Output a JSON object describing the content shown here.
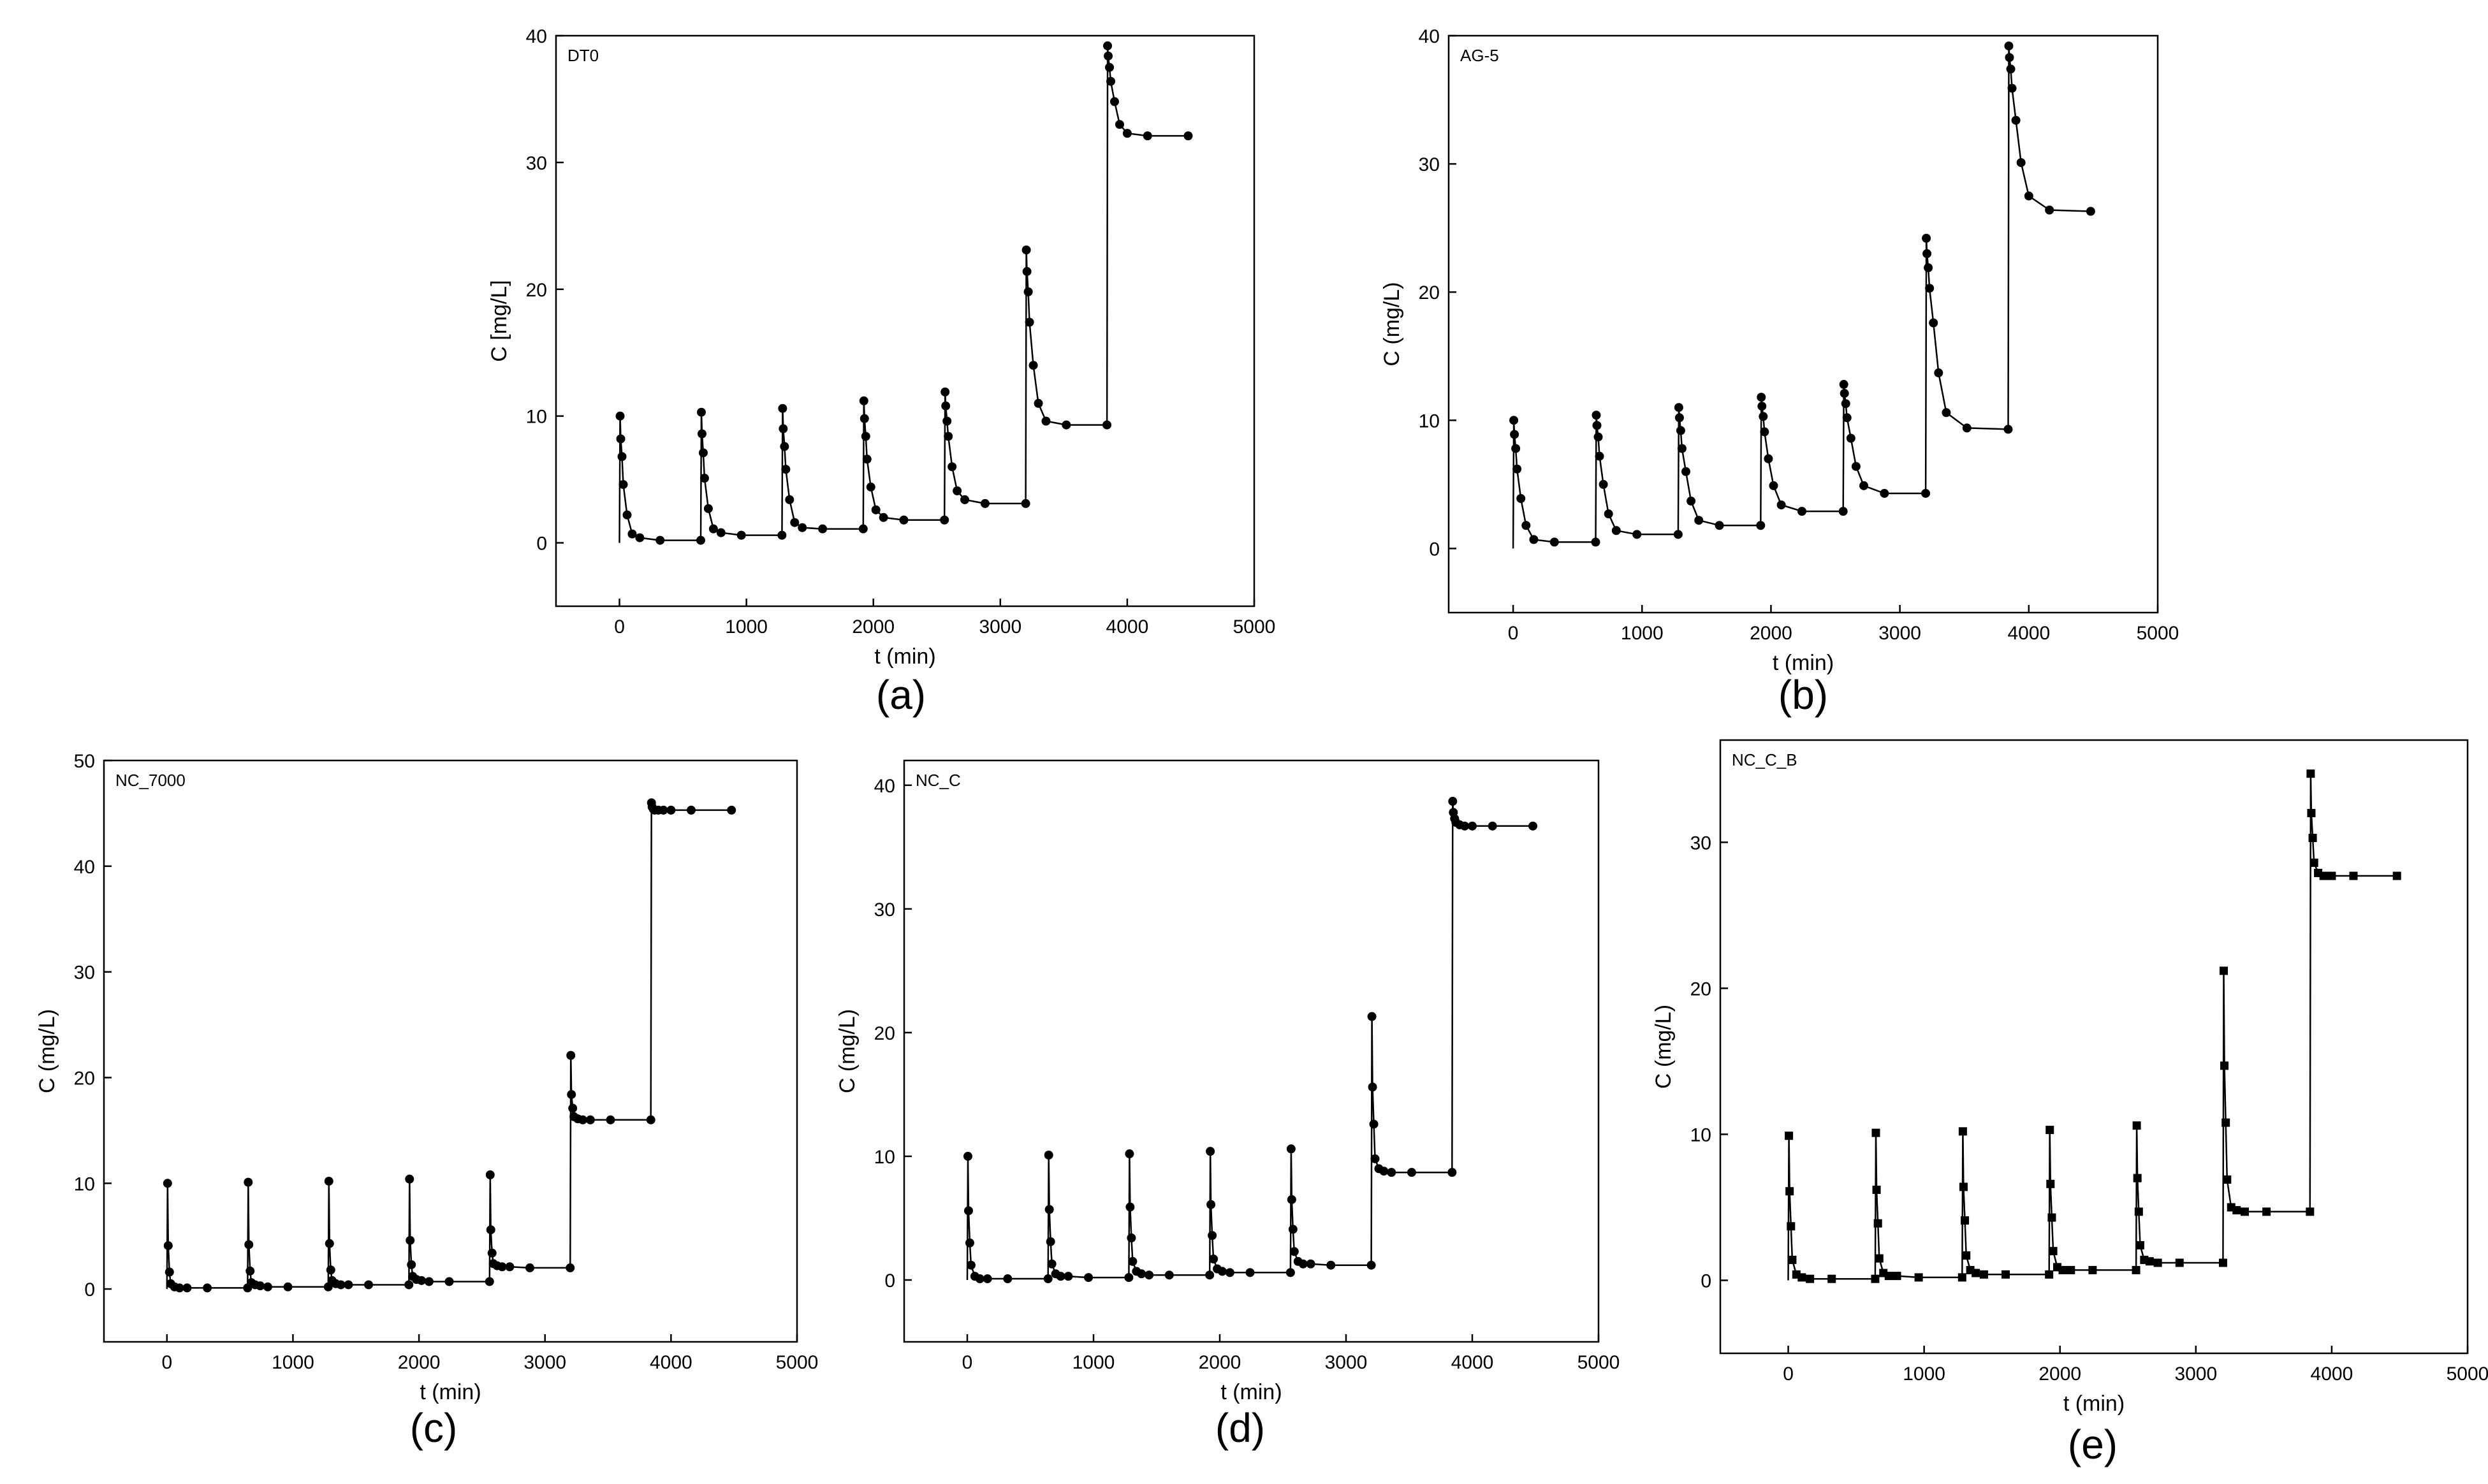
{
  "chart_data": [
    {
      "id": "a",
      "type": "line",
      "panel_label": "(a)",
      "series_label": "DT0",
      "marker": "circle",
      "xlabel": "t (min)",
      "ylabel": "C [mg/L]",
      "xlim": [
        -500,
        5000
      ],
      "ylim": [
        -5,
        40
      ],
      "xticks": [
        0,
        1000,
        2000,
        3000,
        4000,
        5000
      ],
      "yticks": [
        0,
        10,
        20,
        30,
        40
      ],
      "xtick_labels": [
        "0",
        "1000",
        "2000",
        "3000",
        "4000",
        "5000"
      ],
      "ytick_labels": [
        "0",
        "10",
        "20",
        "30",
        "40"
      ],
      "x": [
        0,
        5,
        10,
        20,
        30,
        60,
        100,
        160,
        320,
        640,
        645,
        650,
        660,
        670,
        700,
        740,
        800,
        960,
        1280,
        1285,
        1290,
        1300,
        1310,
        1340,
        1380,
        1440,
        1600,
        1920,
        1925,
        1930,
        1940,
        1950,
        1980,
        2020,
        2080,
        2240,
        2560,
        2565,
        2570,
        2580,
        2590,
        2620,
        2660,
        2720,
        2880,
        3200,
        3205,
        3210,
        3220,
        3230,
        3260,
        3300,
        3360,
        3520,
        3840,
        3845,
        3850,
        3860,
        3870,
        3900,
        3940,
        4000,
        4160,
        4480
      ],
      "y": [
        0,
        10.0,
        8.2,
        6.8,
        4.6,
        2.2,
        0.7,
        0.4,
        0.2,
        0.2,
        10.3,
        8.6,
        7.1,
        5.1,
        2.7,
        1.1,
        0.8,
        0.6,
        0.6,
        10.6,
        9.0,
        7.6,
        5.8,
        3.4,
        1.6,
        1.2,
        1.1,
        1.1,
        11.2,
        9.8,
        8.4,
        6.6,
        4.4,
        2.6,
        2.0,
        1.8,
        1.8,
        11.9,
        10.8,
        9.6,
        8.4,
        6.0,
        4.1,
        3.4,
        3.1,
        3.1,
        23.1,
        21.4,
        19.8,
        17.4,
        14.0,
        11.0,
        9.6,
        9.3,
        9.3,
        39.2,
        38.4,
        37.5,
        36.4,
        34.8,
        33.0,
        32.3,
        32.1,
        32.1
      ]
    },
    {
      "id": "b",
      "type": "line",
      "panel_label": "(b)",
      "series_label": "AG-5",
      "marker": "circle",
      "xlabel": "t (min)",
      "ylabel": "C (mg/L)",
      "xlim": [
        -500,
        5000
      ],
      "ylim": [
        -5,
        40
      ],
      "xticks": [
        0,
        1000,
        2000,
        3000,
        4000,
        5000
      ],
      "yticks": [
        0,
        10,
        20,
        30,
        40
      ],
      "xtick_labels": [
        "0",
        "1000",
        "2000",
        "3000",
        "4000",
        "5000"
      ],
      "ytick_labels": [
        "0",
        "10",
        "20",
        "30",
        "40"
      ],
      "x": [
        0,
        5,
        10,
        20,
        30,
        60,
        100,
        160,
        320,
        640,
        645,
        650,
        660,
        670,
        700,
        740,
        800,
        960,
        1280,
        1285,
        1290,
        1300,
        1310,
        1340,
        1380,
        1440,
        1600,
        1920,
        1925,
        1930,
        1940,
        1950,
        1980,
        2020,
        2080,
        2240,
        2560,
        2565,
        2570,
        2580,
        2590,
        2620,
        2660,
        2720,
        2880,
        3200,
        3205,
        3210,
        3220,
        3230,
        3260,
        3300,
        3360,
        3520,
        3840,
        3845,
        3850,
        3860,
        3870,
        3900,
        3940,
        4000,
        4160,
        4480
      ],
      "y": [
        0,
        10.0,
        8.9,
        7.8,
        6.2,
        3.9,
        1.8,
        0.7,
        0.5,
        0.5,
        10.4,
        9.6,
        8.7,
        7.2,
        5.0,
        2.7,
        1.4,
        1.1,
        1.1,
        11.0,
        10.2,
        9.2,
        7.8,
        6.0,
        3.7,
        2.2,
        1.8,
        1.8,
        11.8,
        11.1,
        10.3,
        9.1,
        7.0,
        4.9,
        3.4,
        2.9,
        2.9,
        12.8,
        12.1,
        11.3,
        10.2,
        8.6,
        6.4,
        4.9,
        4.3,
        4.3,
        24.2,
        23.0,
        21.9,
        20.3,
        17.6,
        13.7,
        10.6,
        9.4,
        9.3,
        39.2,
        38.3,
        37.4,
        35.9,
        33.4,
        30.1,
        27.5,
        26.4,
        26.3
      ]
    },
    {
      "id": "c",
      "type": "line",
      "panel_label": "(c)",
      "series_label": "NC_7000",
      "marker": "circle",
      "xlabel": "t (min)",
      "ylabel": "C (mg/L)",
      "xlim": [
        -500,
        5000
      ],
      "ylim": [
        -5,
        50
      ],
      "xticks": [
        0,
        1000,
        2000,
        3000,
        4000,
        5000
      ],
      "yticks": [
        0,
        10,
        20,
        30,
        40,
        50
      ],
      "xtick_labels": [
        "0",
        "1000",
        "2000",
        "3000",
        "4000",
        "5000"
      ],
      "ytick_labels": [
        "0",
        "10",
        "20",
        "30",
        "40",
        "50"
      ],
      "x": [
        0,
        5,
        10,
        20,
        30,
        60,
        100,
        160,
        320,
        640,
        645,
        650,
        660,
        670,
        700,
        740,
        800,
        960,
        1280,
        1285,
        1290,
        1300,
        1310,
        1340,
        1380,
        1440,
        1600,
        1920,
        1925,
        1930,
        1940,
        1950,
        1980,
        2020,
        2080,
        2240,
        2560,
        2565,
        2570,
        2580,
        2590,
        2620,
        2660,
        2720,
        2880,
        3200,
        3205,
        3210,
        3220,
        3230,
        3260,
        3300,
        3360,
        3520,
        3840,
        3845,
        3850,
        3860,
        3870,
        3900,
        3940,
        4000,
        4160,
        4480
      ],
      "y": [
        0,
        10.0,
        4.1,
        1.6,
        0.5,
        0.2,
        0.1,
        0.1,
        0.1,
        0.1,
        10.1,
        4.2,
        1.7,
        0.6,
        0.4,
        0.3,
        0.2,
        0.2,
        0.2,
        10.2,
        4.3,
        1.8,
        0.8,
        0.5,
        0.4,
        0.4,
        0.4,
        0.4,
        10.4,
        4.6,
        2.3,
        1.2,
        0.9,
        0.8,
        0.7,
        0.7,
        0.7,
        10.8,
        5.6,
        3.4,
        2.4,
        2.2,
        2.1,
        2.1,
        2.0,
        2.0,
        22.1,
        18.4,
        17.1,
        16.3,
        16.1,
        16.0,
        16.0,
        16.0,
        16.0,
        46.0,
        45.6,
        45.4,
        45.3,
        45.3,
        45.3,
        45.3,
        45.3,
        45.3
      ]
    },
    {
      "id": "d",
      "type": "line",
      "panel_label": "(d)",
      "series_label": "NC_C",
      "marker": "circle",
      "xlabel": "t (min)",
      "ylabel": "C (mg/L)",
      "xlim": [
        -500,
        5000
      ],
      "ylim": [
        -5,
        42
      ],
      "xticks": [
        0,
        1000,
        2000,
        3000,
        4000,
        5000
      ],
      "yticks": [
        0,
        10,
        20,
        30,
        40
      ],
      "xtick_labels": [
        "0",
        "1000",
        "2000",
        "3000",
        "4000",
        "5000"
      ],
      "ytick_labels": [
        "0",
        "10",
        "20",
        "30",
        "40"
      ],
      "x": [
        0,
        5,
        10,
        20,
        30,
        60,
        100,
        160,
        320,
        640,
        645,
        650,
        660,
        670,
        700,
        740,
        800,
        960,
        1280,
        1285,
        1290,
        1300,
        1310,
        1340,
        1380,
        1440,
        1600,
        1920,
        1925,
        1930,
        1940,
        1950,
        1980,
        2020,
        2080,
        2240,
        2560,
        2565,
        2570,
        2580,
        2590,
        2620,
        2660,
        2720,
        2880,
        3200,
        3205,
        3210,
        3220,
        3230,
        3260,
        3300,
        3360,
        3520,
        3840,
        3845,
        3850,
        3860,
        3870,
        3900,
        3940,
        4000,
        4160,
        4480
      ],
      "y": [
        0,
        10.0,
        5.6,
        3.0,
        1.2,
        0.3,
        0.1,
        0.1,
        0.1,
        0.1,
        10.1,
        5.7,
        3.1,
        1.3,
        0.5,
        0.3,
        0.3,
        0.2,
        0.2,
        10.2,
        5.9,
        3.4,
        1.5,
        0.7,
        0.5,
        0.4,
        0.4,
        0.4,
        10.4,
        6.1,
        3.6,
        1.7,
        0.9,
        0.7,
        0.6,
        0.6,
        0.6,
        10.6,
        6.5,
        4.1,
        2.3,
        1.5,
        1.3,
        1.3,
        1.2,
        1.2,
        21.3,
        15.6,
        12.6,
        9.8,
        9.0,
        8.8,
        8.7,
        8.7,
        8.7,
        38.7,
        37.8,
        37.3,
        37.0,
        36.8,
        36.7,
        36.7,
        36.7,
        36.7
      ]
    },
    {
      "id": "e",
      "type": "line",
      "panel_label": "(e)",
      "series_label": "NC_C_B",
      "marker": "square",
      "xlabel": "t (min)",
      "ylabel": "C (mg/L)",
      "xlim": [
        -500,
        5000
      ],
      "ylim": [
        -5,
        37
      ],
      "xticks": [
        0,
        1000,
        2000,
        3000,
        4000,
        5000
      ],
      "yticks": [
        0,
        10,
        20,
        30
      ],
      "xtick_labels": [
        "0",
        "1000",
        "2000",
        "3000",
        "4000",
        "5000"
      ],
      "ytick_labels": [
        "0",
        "10",
        "20",
        "30"
      ],
      "x": [
        0,
        5,
        10,
        20,
        30,
        60,
        100,
        160,
        320,
        640,
        645,
        650,
        660,
        670,
        700,
        740,
        800,
        960,
        1280,
        1285,
        1290,
        1300,
        1310,
        1340,
        1380,
        1440,
        1600,
        1920,
        1925,
        1930,
        1940,
        1950,
        1980,
        2020,
        2080,
        2240,
        2560,
        2565,
        2570,
        2580,
        2590,
        2620,
        2660,
        2720,
        2880,
        3200,
        3205,
        3210,
        3220,
        3230,
        3260,
        3300,
        3360,
        3520,
        3840,
        3845,
        3850,
        3860,
        3870,
        3900,
        3940,
        4000,
        4160,
        4480
      ],
      "y": [
        0,
        9.9,
        6.1,
        3.7,
        1.4,
        0.4,
        0.2,
        0.1,
        0.1,
        0.1,
        10.1,
        6.2,
        3.9,
        1.5,
        0.5,
        0.3,
        0.3,
        0.2,
        0.2,
        10.2,
        6.4,
        4.1,
        1.7,
        0.7,
        0.5,
        0.4,
        0.4,
        0.4,
        10.3,
        6.6,
        4.3,
        2.0,
        0.9,
        0.7,
        0.7,
        0.7,
        0.7,
        10.6,
        7.0,
        4.7,
        2.4,
        1.4,
        1.3,
        1.2,
        1.2,
        1.2,
        21.2,
        14.7,
        10.8,
        6.9,
        5.0,
        4.8,
        4.7,
        4.7,
        4.7,
        34.7,
        32.0,
        30.3,
        28.6,
        27.9,
        27.7,
        27.7,
        27.7,
        27.7
      ]
    }
  ]
}
